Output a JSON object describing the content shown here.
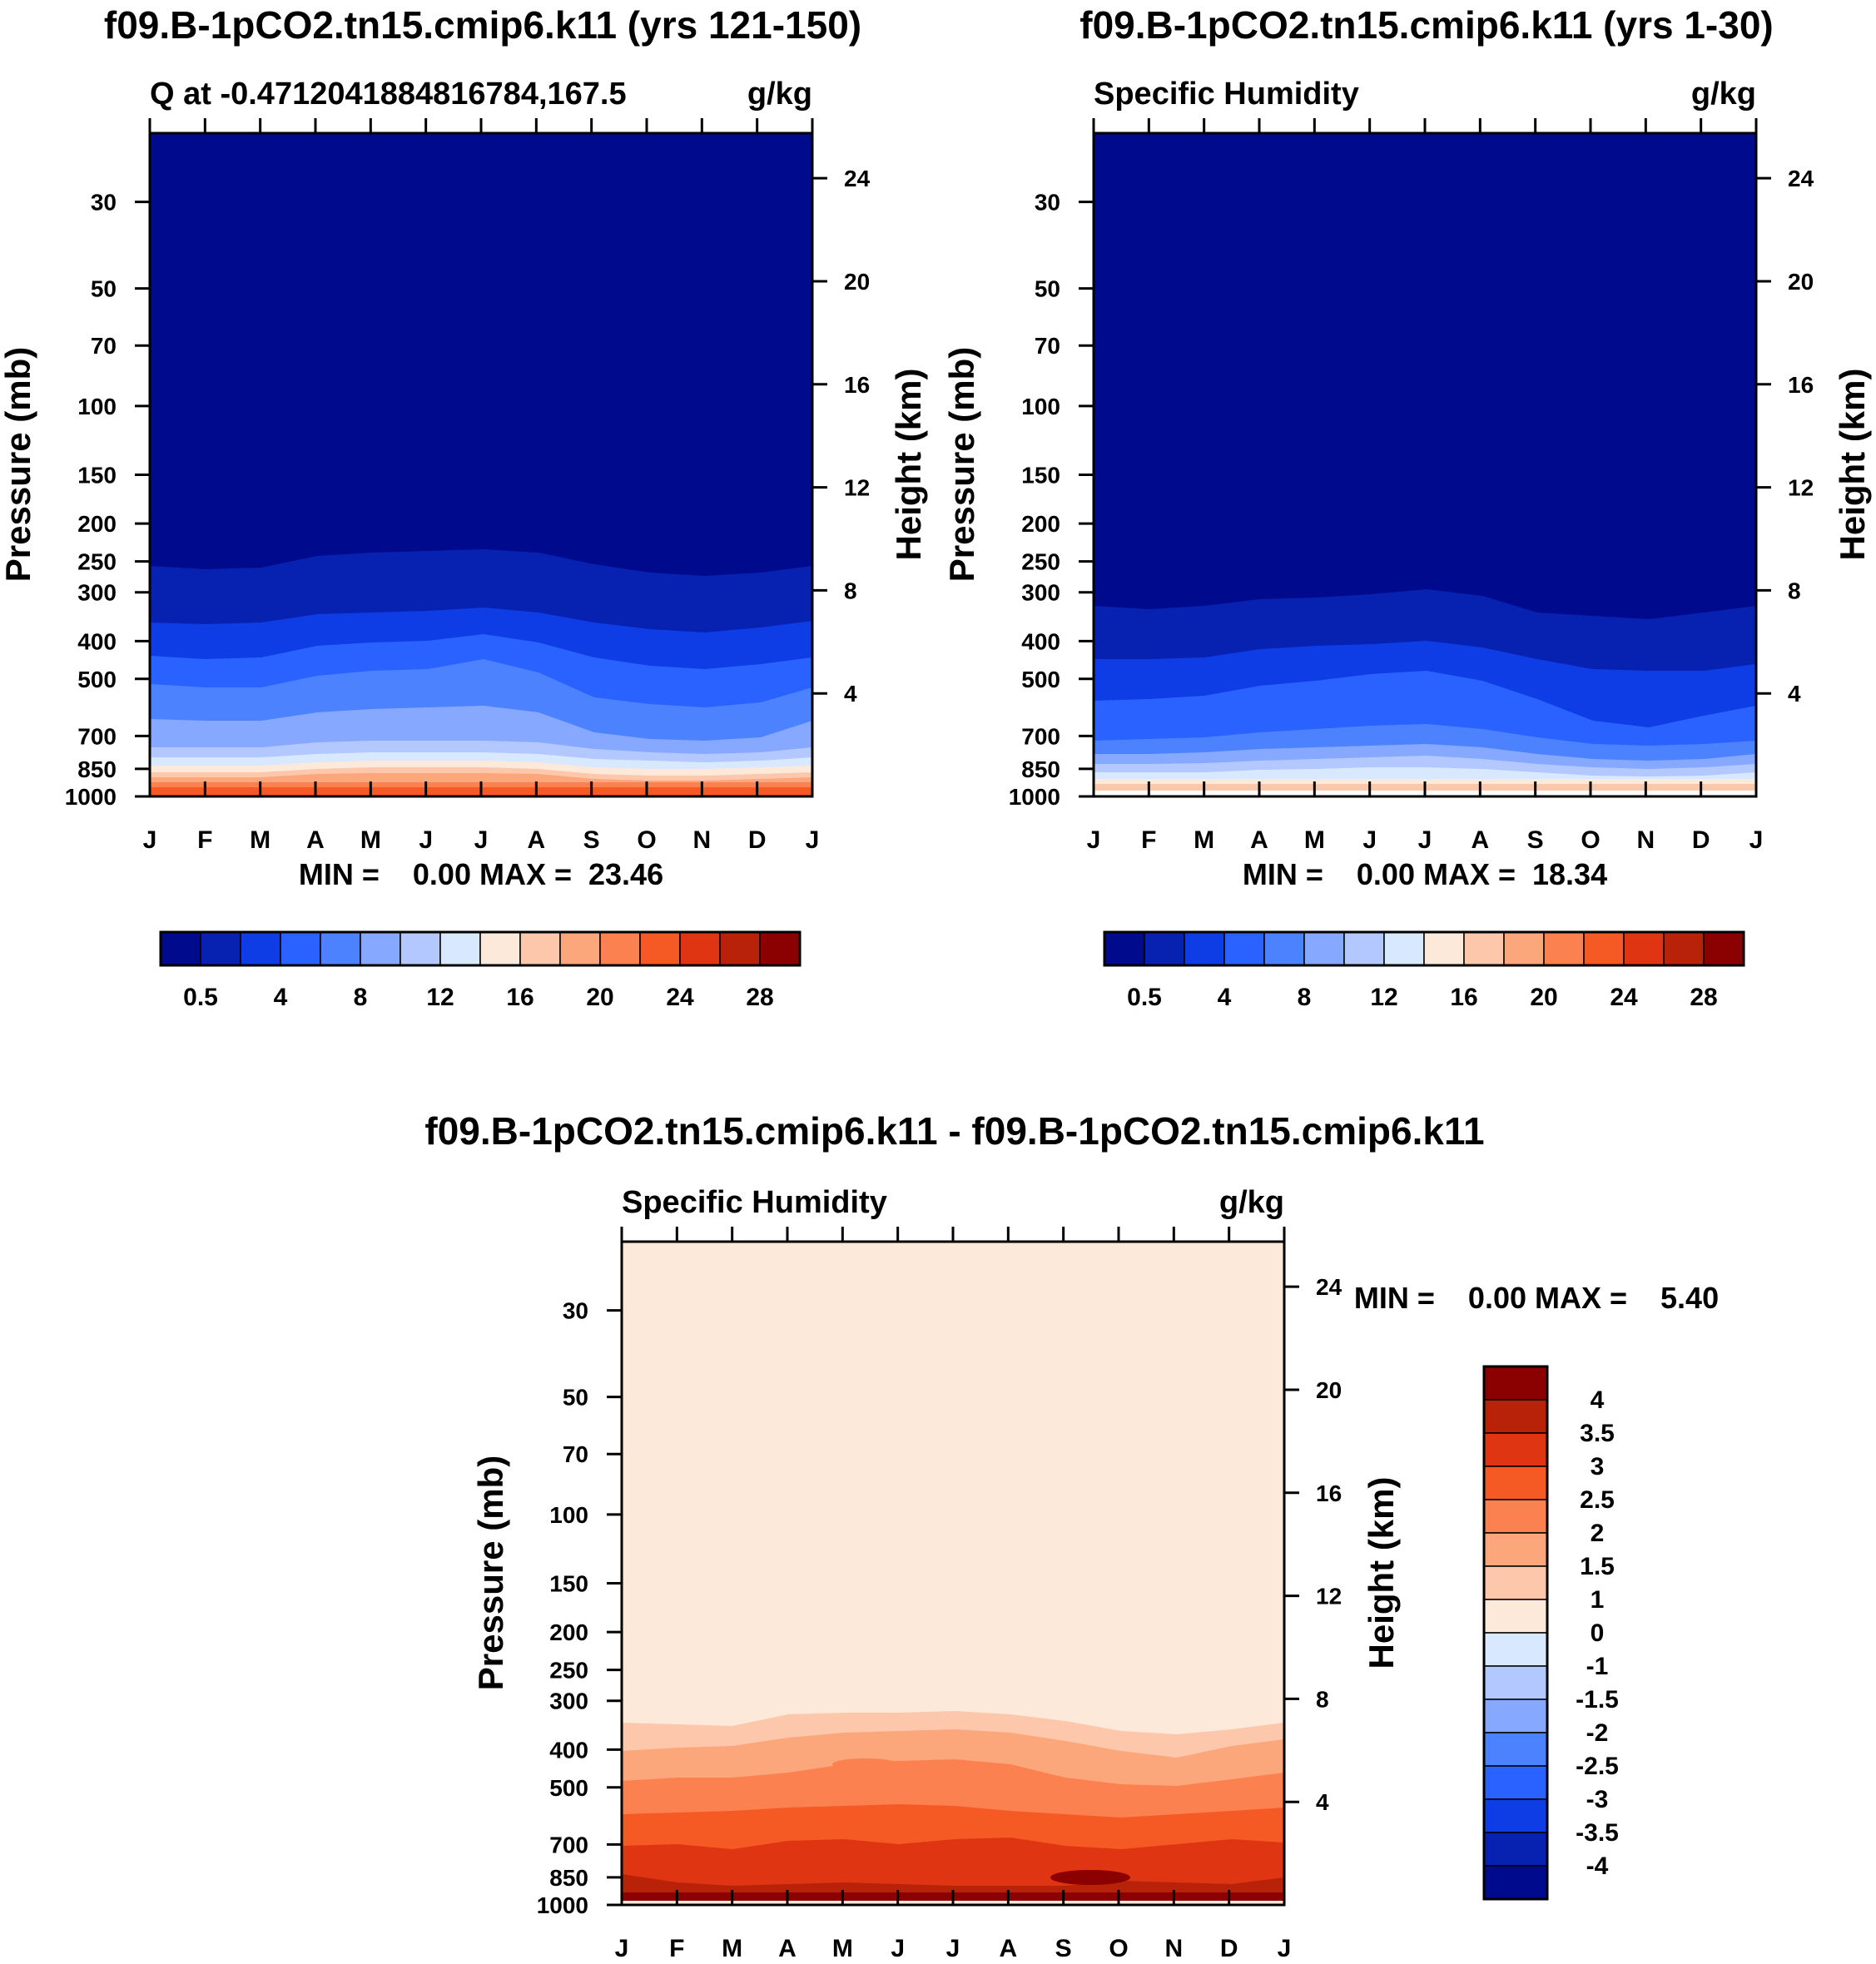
{
  "chart_data": [
    {
      "type": "heatmap",
      "panel": "top-left",
      "title": "f09.B-1pCO2.tn15.cmip6.k11 (yrs 121-150)",
      "subtitle_left": "Q at -0.4712041884816784,167.5",
      "subtitle_right": "g/kg",
      "ylabel": "Pressure (mb)",
      "ylabel_right": "Height (km)",
      "x_ticks": [
        "J",
        "F",
        "M",
        "A",
        "M",
        "J",
        "J",
        "A",
        "S",
        "O",
        "N",
        "D",
        "J"
      ],
      "y_ticks": [
        "30",
        "50",
        "70",
        "100",
        "150",
        "200",
        "250",
        "300",
        "400",
        "500",
        "700",
        "850",
        "1000"
      ],
      "y_ticks_right": [
        "24",
        "20",
        "16",
        "12",
        "8",
        "4"
      ],
      "ylim": [
        1000,
        20
      ],
      "stats": "MIN =    0.00 MAX =  23.46",
      "colorbar": {
        "orientation": "horizontal",
        "labels": [
          "0.5",
          "4",
          "8",
          "12",
          "16",
          "20",
          "24",
          "28"
        ],
        "colors": [
          "#000a8c",
          "#0721b0",
          "#0e3de6",
          "#2a62ff",
          "#4d82ff",
          "#86a8ff",
          "#b2c8ff",
          "#d8e8ff",
          "#fde9d9",
          "#fcc7ab",
          "#fca67c",
          "#fc8150",
          "#f65a24",
          "#e03512",
          "#b72208",
          "#8b0000"
        ]
      },
      "contour_lines_description_levels": []
    },
    {
      "type": "heatmap",
      "panel": "top-right",
      "title": "f09.B-1pCO2.tn15.cmip6.k11 (yrs 1-30)",
      "subtitle_left": "Specific Humidity",
      "subtitle_right": "g/kg",
      "ylabel": "Pressure (mb)",
      "ylabel_right": "Height (km)",
      "x_ticks": [
        "J",
        "F",
        "M",
        "A",
        "M",
        "J",
        "J",
        "A",
        "S",
        "O",
        "N",
        "D",
        "J"
      ],
      "y_ticks": [
        "30",
        "50",
        "70",
        "100",
        "150",
        "200",
        "250",
        "300",
        "400",
        "500",
        "700",
        "850",
        "1000"
      ],
      "y_ticks_right": [
        "24",
        "20",
        "16",
        "12",
        "8",
        "4"
      ],
      "ylim": [
        1000,
        20
      ],
      "stats": "MIN =    0.00 MAX =  18.34",
      "colorbar": {
        "orientation": "horizontal",
        "labels": [
          "0.5",
          "4",
          "8",
          "12",
          "16",
          "20",
          "24",
          "28"
        ],
        "colors": [
          "#000a8c",
          "#0721b0",
          "#0e3de6",
          "#2a62ff",
          "#4d82ff",
          "#86a8ff",
          "#b2c8ff",
          "#d8e8ff",
          "#fde9d9",
          "#fcc7ab",
          "#fca67c",
          "#fc8150",
          "#f65a24",
          "#e03512",
          "#b72208",
          "#8b0000"
        ]
      }
    },
    {
      "type": "heatmap",
      "panel": "bottom-difference",
      "title": "f09.B-1pCO2.tn15.cmip6.k11 - f09.B-1pCO2.tn15.cmip6.k11",
      "subtitle_left": "Specific Humidity",
      "subtitle_right": "g/kg",
      "ylabel": "Pressure (mb)",
      "ylabel_right": "Height (km)",
      "x_ticks": [
        "J",
        "F",
        "M",
        "A",
        "M",
        "J",
        "J",
        "A",
        "S",
        "O",
        "N",
        "D",
        "J"
      ],
      "y_ticks": [
        "30",
        "50",
        "70",
        "100",
        "150",
        "200",
        "250",
        "300",
        "400",
        "500",
        "700",
        "850",
        "1000"
      ],
      "y_ticks_right": [
        "24",
        "20",
        "16",
        "12",
        "8",
        "4"
      ],
      "ylim": [
        1000,
        20
      ],
      "stats": "MIN =    0.00 MAX =    5.40",
      "colorbar": {
        "orientation": "vertical",
        "labels": [
          "4",
          "3.5",
          "3",
          "2.5",
          "2",
          "1.5",
          "1",
          "0",
          "-1",
          "-1.5",
          "-2",
          "-2.5",
          "-3",
          "-3.5",
          "-4"
        ],
        "colors": [
          "#8b0000",
          "#b72208",
          "#e03512",
          "#f65a24",
          "#fc8150",
          "#fca67c",
          "#fcc7ab",
          "#fde9d9",
          "#d8e8ff",
          "#b2c8ff",
          "#86a8ff",
          "#4d82ff",
          "#2a62ff",
          "#0e3de6",
          "#0721b0",
          "#000a8c"
        ]
      }
    }
  ]
}
